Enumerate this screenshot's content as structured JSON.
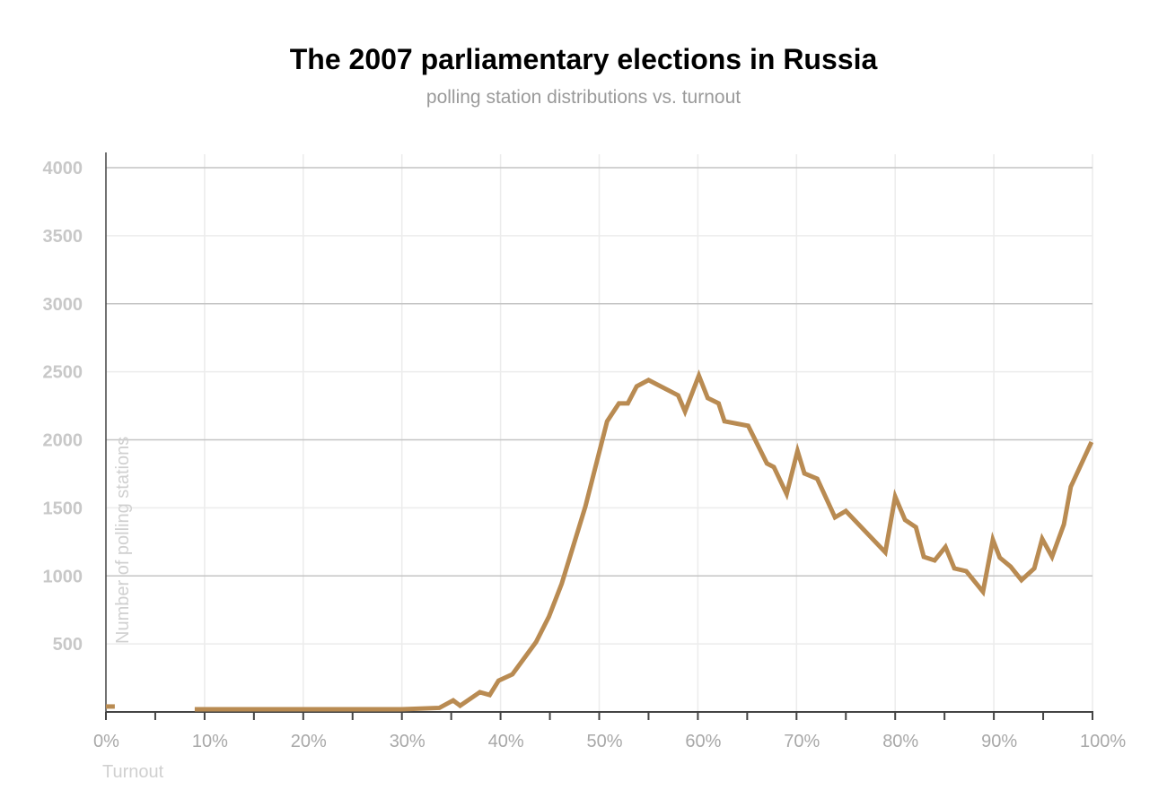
{
  "chart_data": {
    "type": "line",
    "title": "The 2007 parliamentary elections in Russia",
    "subtitle": "polling station distributions vs. turnout",
    "xlabel": "Turnout",
    "ylabel": "Number of polling stations",
    "xlim": [
      0,
      100
    ],
    "ylim": [
      0,
      4000
    ],
    "x_ticks": [
      0,
      10,
      20,
      30,
      40,
      50,
      60,
      70,
      80,
      90,
      100
    ],
    "x_tick_labels": [
      "0%",
      "10%",
      "20%",
      "30%",
      "40%",
      "50%",
      "60%",
      "70%",
      "80%",
      "90%",
      "100%"
    ],
    "y_ticks": [
      500,
      1000,
      1500,
      2000,
      2500,
      3000,
      3500,
      4000
    ],
    "y_tick_labels": [
      "500",
      "1000",
      "1500",
      "2000",
      "2500",
      "3000",
      "3500",
      "4000"
    ],
    "grid": true,
    "color": "#b98b52",
    "series": [
      {
        "name": "segment-low",
        "x": [
          0,
          0.9
        ],
        "y": [
          40,
          40
        ]
      },
      {
        "name": "polling stations",
        "x": [
          9,
          30,
          33.8,
          35.2,
          35.9,
          37.9,
          38.9,
          39.8,
          41.2,
          43.6,
          44.9,
          46.2,
          48.6,
          50.8,
          52.0,
          52.9,
          53.8,
          55.0,
          58.0,
          58.7,
          60.1,
          61.0,
          62.1,
          62.7,
          65.1,
          67.0,
          67.7,
          69.0,
          70.1,
          70.8,
          72.1,
          73.9,
          75.0,
          79.0,
          80.0,
          81.0,
          82.1,
          82.9,
          84.0,
          85.1,
          86.0,
          87.2,
          88.9,
          89.9,
          90.6,
          91.7,
          92.8,
          94.1,
          94.9,
          95.9,
          97.1,
          97.8,
          99.9
        ],
        "y": [
          20,
          20,
          30,
          85,
          46,
          145,
          125,
          230,
          277,
          514,
          700,
          943,
          1510,
          2136,
          2268,
          2268,
          2393,
          2439,
          2327,
          2208,
          2472,
          2307,
          2268,
          2136,
          2103,
          1826,
          1800,
          1602,
          1918,
          1753,
          1714,
          1430,
          1477,
          1173,
          1582,
          1411,
          1358,
          1140,
          1114,
          1213,
          1055,
          1035,
          883,
          1266,
          1134,
          1068,
          969,
          1055,
          1272,
          1140,
          1378,
          1655,
          1984
        ]
      }
    ]
  }
}
